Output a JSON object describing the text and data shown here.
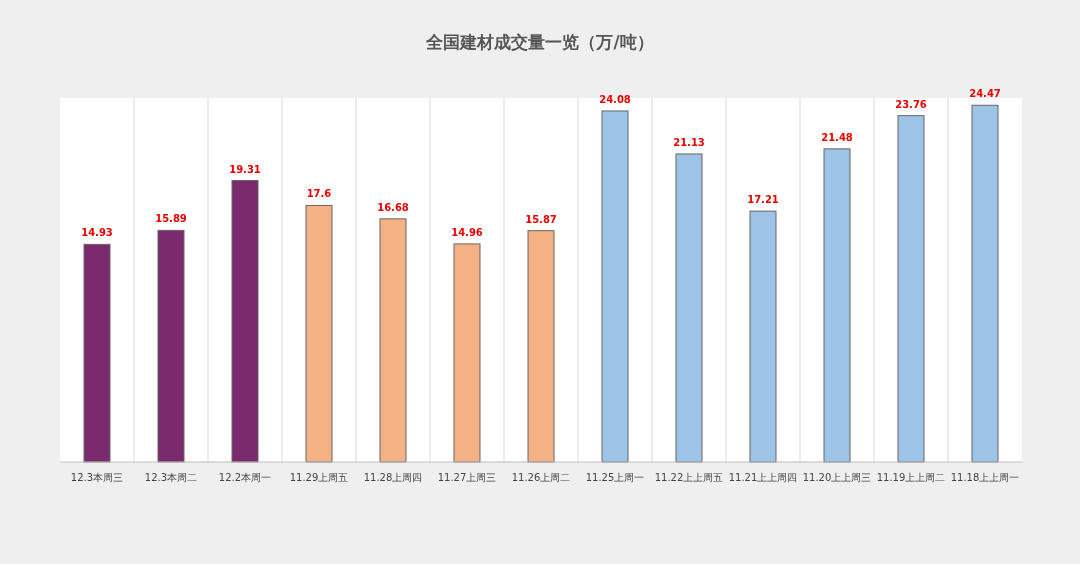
{
  "chart_data": {
    "type": "bar",
    "title": "全国建材成交量一览（万/吨）",
    "categories": [
      "12.3本周三",
      "12.3本周二",
      "12.2本周一",
      "11.29上周五",
      "11.28上周四",
      "11.27上周三",
      "11.26上周二",
      "11.25上周一",
      "11.22上上周五",
      "11.21上上周四",
      "11.20上上周三",
      "11.19上上周二",
      "11.18上上周一"
    ],
    "values": [
      14.93,
      15.89,
      19.31,
      17.6,
      16.68,
      14.96,
      15.87,
      24.08,
      21.13,
      17.21,
      21.48,
      23.76,
      24.47
    ],
    "colors": [
      "#7b2a6e",
      "#7b2a6e",
      "#7b2a6e",
      "#f4b183",
      "#f4b183",
      "#f4b183",
      "#f4b183",
      "#9dc3e6",
      "#9dc3e6",
      "#9dc3e6",
      "#9dc3e6",
      "#9dc3e6",
      "#9dc3e6"
    ],
    "data_labels": true,
    "grid": "x"
  }
}
